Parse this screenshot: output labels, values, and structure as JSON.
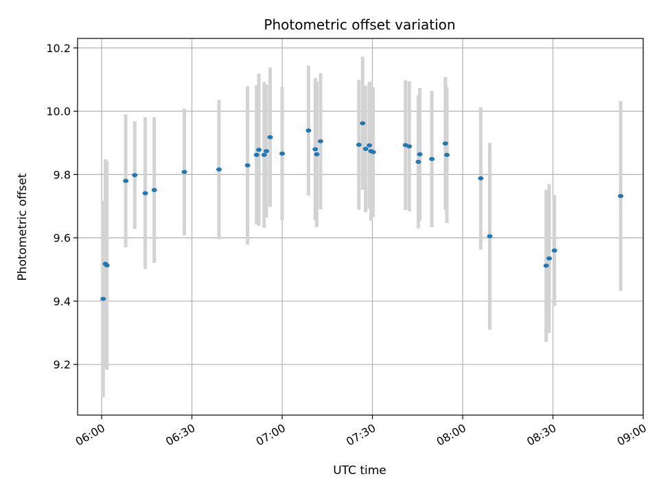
{
  "chart_data": {
    "type": "scatter",
    "title": "Photometric offset variation",
    "xlabel": "UTC time",
    "ylabel": "Photometric offset",
    "xlim": [
      "05:52",
      "09:00"
    ],
    "ylim": [
      9.04,
      10.23
    ],
    "x_ticks": [
      "06:00",
      "06:30",
      "07:00",
      "07:30",
      "08:00",
      "08:30",
      "09:00"
    ],
    "y_ticks": [
      9.2,
      9.4,
      9.6,
      9.8,
      10.0,
      10.2
    ],
    "grid": true,
    "colors": {
      "points": "#1f77b4",
      "errorbars": "#d3d3d3",
      "grid": "#b0b0b0",
      "axes": "#000000"
    },
    "points": [
      {
        "t": "06:00:30",
        "y": 9.407,
        "err": 0.31
      },
      {
        "t": "06:01:15",
        "y": 9.518,
        "err": 0.33
      },
      {
        "t": "06:01:45",
        "y": 9.513,
        "err": 0.33
      },
      {
        "t": "06:08:00",
        "y": 9.78,
        "err": 0.21
      },
      {
        "t": "06:11:00",
        "y": 9.798,
        "err": 0.17
      },
      {
        "t": "06:14:30",
        "y": 9.741,
        "err": 0.24
      },
      {
        "t": "06:17:30",
        "y": 9.751,
        "err": 0.23
      },
      {
        "t": "06:27:30",
        "y": 9.808,
        "err": 0.2
      },
      {
        "t": "06:39:00",
        "y": 9.816,
        "err": 0.22
      },
      {
        "t": "06:48:30",
        "y": 9.829,
        "err": 0.25
      },
      {
        "t": "06:51:30",
        "y": 9.862,
        "err": 0.22
      },
      {
        "t": "06:52:15",
        "y": 9.878,
        "err": 0.24
      },
      {
        "t": "06:54:00",
        "y": 9.862,
        "err": 0.23
      },
      {
        "t": "06:54:45",
        "y": 9.874,
        "err": 0.21
      },
      {
        "t": "06:56:00",
        "y": 9.918,
        "err": 0.22
      },
      {
        "t": "07:00:00",
        "y": 9.866,
        "err": 0.21
      },
      {
        "t": "07:08:45",
        "y": 9.939,
        "err": 0.205
      },
      {
        "t": "07:11:00",
        "y": 9.88,
        "err": 0.225
      },
      {
        "t": "07:11:30",
        "y": 9.864,
        "err": 0.23
      },
      {
        "t": "07:12:45",
        "y": 9.905,
        "err": 0.215
      },
      {
        "t": "07:25:30",
        "y": 9.894,
        "err": 0.205
      },
      {
        "t": "07:26:45",
        "y": 9.962,
        "err": 0.21
      },
      {
        "t": "07:27:45",
        "y": 9.881,
        "err": 0.2
      },
      {
        "t": "07:29:00",
        "y": 9.892,
        "err": 0.2
      },
      {
        "t": "07:29:30",
        "y": 9.874,
        "err": 0.22
      },
      {
        "t": "07:30:15",
        "y": 9.871,
        "err": 0.205
      },
      {
        "t": "07:41:00",
        "y": 9.893,
        "err": 0.205
      },
      {
        "t": "07:42:15",
        "y": 9.889,
        "err": 0.205
      },
      {
        "t": "07:45:15",
        "y": 9.84,
        "err": 0.21
      },
      {
        "t": "07:45:45",
        "y": 9.864,
        "err": 0.21
      },
      {
        "t": "07:49:45",
        "y": 9.849,
        "err": 0.215
      },
      {
        "t": "07:54:15",
        "y": 9.898,
        "err": 0.21
      },
      {
        "t": "07:54:45",
        "y": 9.862,
        "err": 0.215
      },
      {
        "t": "08:06:00",
        "y": 9.788,
        "err": 0.225
      },
      {
        "t": "08:09:00",
        "y": 9.605,
        "err": 0.295
      },
      {
        "t": "08:27:45",
        "y": 9.512,
        "err": 0.24
      },
      {
        "t": "08:28:45",
        "y": 9.535,
        "err": 0.235
      },
      {
        "t": "08:30:30",
        "y": 9.56,
        "err": 0.175
      },
      {
        "t": "08:52:30",
        "y": 9.732,
        "err": 0.3
      }
    ]
  }
}
